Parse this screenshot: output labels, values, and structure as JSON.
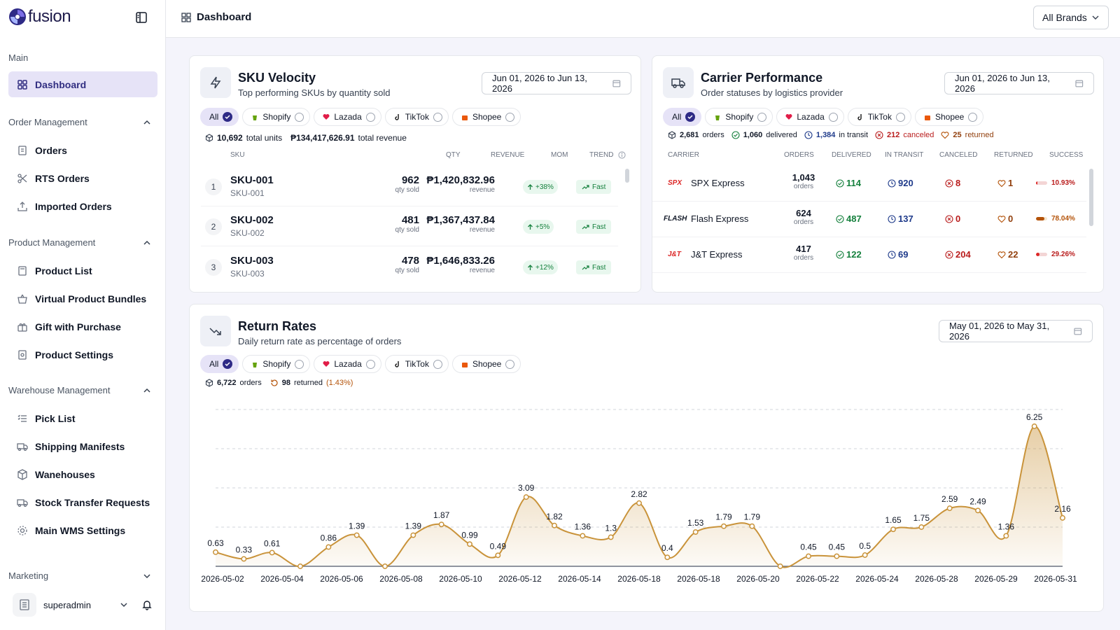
{
  "app": {
    "name": "fusion"
  },
  "sidebar": {
    "main_label": "Main",
    "dashboard": "Dashboard",
    "sections": [
      {
        "label": "Order Management",
        "items": [
          "Orders",
          "RTS Orders",
          "Imported Orders"
        ]
      },
      {
        "label": "Product Management",
        "items": [
          "Product List",
          "Virtual Product Bundles",
          "Gift with Purchase",
          "Product Settings"
        ]
      },
      {
        "label": "Warehouse Management",
        "items": [
          "Pick List",
          "Shipping Manifests",
          "Wanehouses",
          "Stock Transfer Requests",
          "Main WMS Settings"
        ]
      }
    ],
    "marketing_label": "Marketing",
    "user": "superadmin"
  },
  "topbar": {
    "title": "Dashboard",
    "brand_select": "All Brands"
  },
  "filters": [
    "All",
    "Shopify",
    "Lazada",
    "TikTok",
    "Shopee"
  ],
  "sku_velocity": {
    "title": "SKU Velocity",
    "subtitle": "Top performing SKUs by quantity sold",
    "date_range": "Jun 01, 2026 to Jun 13, 2026",
    "total_units": "10,692",
    "total_units_label": "total units",
    "total_revenue": "₱134,417,626.91",
    "total_revenue_label": "total revenue",
    "columns": {
      "sku": "SKU",
      "qty": "QTY",
      "revenue": "REVENUE",
      "mom": "MOM",
      "trend": "TREND"
    },
    "qty_label": "qty sold",
    "revenue_label": "revenue",
    "rows": [
      {
        "rank": "1",
        "name": "SKU-001",
        "code": "SKU-001",
        "qty": "962",
        "revenue": "₱1,420,832.96",
        "mom": "+38%",
        "trend": "Fast"
      },
      {
        "rank": "2",
        "name": "SKU-002",
        "code": "SKU-002",
        "qty": "481",
        "revenue": "₱1,367,437.84",
        "mom": "+5%",
        "trend": "Fast"
      },
      {
        "rank": "3",
        "name": "SKU-003",
        "code": "SKU-003",
        "qty": "478",
        "revenue": "₱1,646,833.26",
        "mom": "+12%",
        "trend": "Fast"
      }
    ]
  },
  "carrier_performance": {
    "title": "Carrier Performance",
    "subtitle": "Order statuses by logistics provider",
    "date_range": "Jun 01, 2026 to Jun 13, 2026",
    "summary": {
      "orders": "2,681",
      "orders_label": "orders",
      "delivered": "1,060",
      "delivered_label": "delivered",
      "in_transit": "1,384",
      "in_transit_label": "in transit",
      "canceled": "212",
      "canceled_label": "canceled",
      "returned": "25",
      "returned_label": "returned"
    },
    "columns": {
      "carrier": "CARRIER",
      "orders": "ORDERS",
      "delivered": "DELIVERED",
      "in_transit": "IN TRANSIT",
      "canceled": "CANCELED",
      "returned": "RETURNED",
      "success": "SUCCESS"
    },
    "orders_unit": "orders",
    "rows": [
      {
        "logo": "SPX",
        "name": "SPX Express",
        "orders": "1,043",
        "delivered": "114",
        "in_transit": "920",
        "canceled": "8",
        "returned": "1",
        "success": "10.93%",
        "success_value": 10.93,
        "bar_color": "#dc2626"
      },
      {
        "logo": "FLASH",
        "name": "Flash Express",
        "orders": "624",
        "delivered": "487",
        "in_transit": "137",
        "canceled": "0",
        "returned": "0",
        "success": "78.04%",
        "success_value": 78.04,
        "bar_color": "#b45309"
      },
      {
        "logo": "J&T",
        "name": "J&T Express",
        "orders": "417",
        "delivered": "122",
        "in_transit": "69",
        "canceled": "204",
        "returned": "22",
        "success": "29.26%",
        "success_value": 29.26,
        "bar_color": "#dc2626"
      }
    ]
  },
  "return_rates": {
    "title": "Return Rates",
    "subtitle": "Daily return rate as percentage of orders",
    "date_range": "May 01, 2026 to May 31, 2026",
    "orders": "6,722",
    "orders_label": "orders",
    "returned": "98",
    "returned_label": "returned",
    "returned_pct": "(1.43%)"
  },
  "chart_data": {
    "type": "area",
    "title": "",
    "xlabel": "",
    "ylabel": "",
    "ylim": [
      0,
      7
    ],
    "grid": true,
    "x_tick_labels": [
      "2026-05-02",
      "2026-05-04",
      "2026-05-06",
      "2026-05-08",
      "2026-05-10",
      "2026-05-12",
      "2026-05-14",
      "2026-05-18",
      "2026-05-18",
      "2026-05-20",
      "2026-05-22",
      "2026-05-24",
      "2026-05-28",
      "2026-05-29",
      "2026-05-31"
    ],
    "values": [
      0.63,
      0.33,
      0.61,
      0,
      0.86,
      1.39,
      0,
      1.39,
      1.87,
      0.99,
      0.49,
      3.09,
      1.82,
      1.36,
      1.3,
      2.82,
      0.4,
      1.53,
      1.79,
      1.79,
      0,
      0.45,
      0.45,
      0.5,
      1.65,
      1.75,
      2.59,
      2.49,
      1.36,
      6.25,
      2.16
    ],
    "labels": [
      "0.63",
      "0.33",
      "0.61",
      "",
      "0.86",
      "1.39",
      "",
      "1.39",
      "1.87",
      "0.99",
      "0.49",
      "3.09",
      "1.82",
      "1.36",
      "1.3",
      "2.82",
      "0.4",
      "1.53",
      "1.79",
      "1.79",
      "",
      "0.45",
      "0.45",
      "0.5",
      "1.65",
      "1.75",
      "2.59",
      "2.49",
      "1.36",
      "6.25",
      "2.16"
    ],
    "color": "#c9933a"
  }
}
